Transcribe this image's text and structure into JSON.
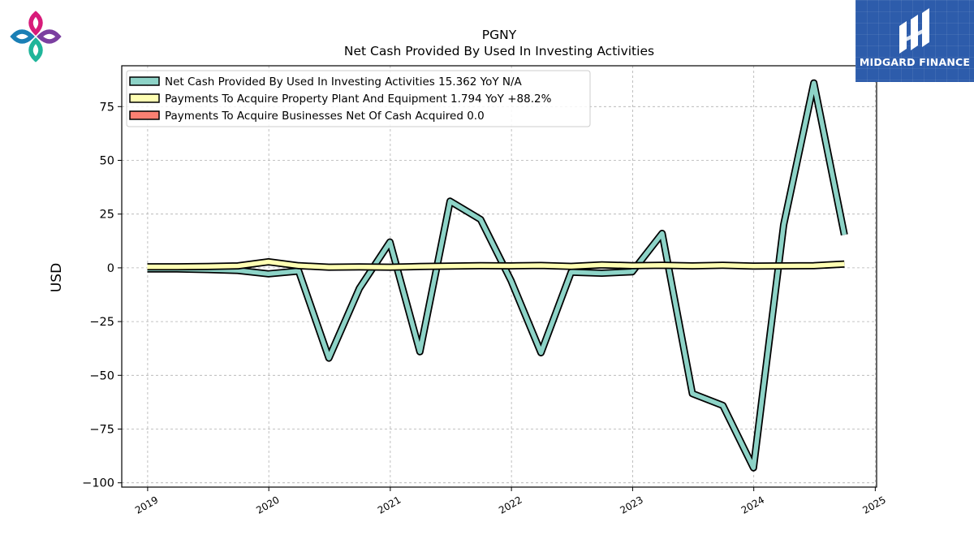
{
  "brand": {
    "name": "MIDGARD FINANCE"
  },
  "colors": {
    "net_cash": "#8dd3c7",
    "ppe": "#ffffb3",
    "businesses": "#fb8072",
    "outline": "#000000",
    "grid": "#b0b0b0",
    "brand_bg": "#2d5cab"
  },
  "chart_data": {
    "type": "line",
    "title": "PGNY",
    "subtitle": "Net Cash Provided By Used In Investing Activities",
    "ylabel": "USD",
    "xlabel": "",
    "ylim": [
      -102,
      94
    ],
    "yticks": [
      -100,
      -75,
      -50,
      -25,
      0,
      25,
      50,
      75
    ],
    "ytick_labels": [
      "−100",
      "−75",
      "−50",
      "−25",
      "0",
      "25",
      "50",
      "75"
    ],
    "xlim": [
      "2018-10-15",
      "2025-01-05"
    ],
    "xticks": [
      "2019-01-01",
      "2020-01-01",
      "2021-01-01",
      "2022-01-01",
      "2023-01-01",
      "2024-01-01",
      "2025-01-01"
    ],
    "xtick_labels": [
      "2019",
      "2020",
      "2021",
      "2022",
      "2023",
      "2024",
      "2025"
    ],
    "grid": true,
    "legend_position": "top-left",
    "series": [
      {
        "name": "Net Cash Provided By Used In Investing Activities  15.362 YoY N/A",
        "color_key": "net_cash",
        "points": [
          [
            "2018-12-31",
            -0.5
          ],
          [
            "2019-03-31",
            -0.5
          ],
          [
            "2019-06-30",
            -0.8
          ],
          [
            "2019-09-30",
            -1.2
          ],
          [
            "2019-12-31",
            -2.8
          ],
          [
            "2020-03-31",
            -1.5
          ],
          [
            "2020-06-30",
            -42.0
          ],
          [
            "2020-09-30",
            -9.5
          ],
          [
            "2020-12-31",
            12.0
          ],
          [
            "2021-03-31",
            -39.0
          ],
          [
            "2021-06-30",
            31.0
          ],
          [
            "2021-09-30",
            22.5
          ],
          [
            "2021-12-31",
            -6.0
          ],
          [
            "2022-03-31",
            -39.5
          ],
          [
            "2022-06-30",
            -2.0
          ],
          [
            "2022-09-30",
            -2.5
          ],
          [
            "2022-12-31",
            -1.8
          ],
          [
            "2023-03-31",
            16.0
          ],
          [
            "2023-06-30",
            -58.5
          ],
          [
            "2023-09-30",
            -64.0
          ],
          [
            "2023-12-31",
            -93.0
          ],
          [
            "2024-03-31",
            20.0
          ],
          [
            "2024-06-30",
            86.0
          ],
          [
            "2024-09-30",
            15.362
          ]
        ]
      },
      {
        "name": "Payments To Acquire Property Plant And Equipment  1.794 YoY +88.2%",
        "color_key": "ppe",
        "points": [
          [
            "2018-12-31",
            0.5
          ],
          [
            "2019-03-31",
            0.5
          ],
          [
            "2019-06-30",
            0.6
          ],
          [
            "2019-09-30",
            0.9
          ],
          [
            "2019-12-31",
            2.8
          ],
          [
            "2020-03-31",
            1.0
          ],
          [
            "2020-06-30",
            0.3
          ],
          [
            "2020-09-30",
            0.4
          ],
          [
            "2020-12-31",
            0.3
          ],
          [
            "2021-03-31",
            0.6
          ],
          [
            "2021-06-30",
            0.8
          ],
          [
            "2021-09-30",
            1.0
          ],
          [
            "2021-12-31",
            0.9
          ],
          [
            "2022-03-31",
            1.1
          ],
          [
            "2022-06-30",
            0.7
          ],
          [
            "2022-09-30",
            1.4
          ],
          [
            "2022-12-31",
            1.0
          ],
          [
            "2023-03-31",
            1.2
          ],
          [
            "2023-06-30",
            0.9
          ],
          [
            "2023-09-30",
            1.2
          ],
          [
            "2023-12-31",
            0.8
          ],
          [
            "2024-03-31",
            0.9
          ],
          [
            "2024-06-30",
            1.0
          ],
          [
            "2024-09-30",
            1.794
          ]
        ]
      },
      {
        "name": "Payments To Acquire Businesses Net Of Cash Acquired  0.0",
        "color_key": "businesses",
        "points": []
      }
    ]
  }
}
